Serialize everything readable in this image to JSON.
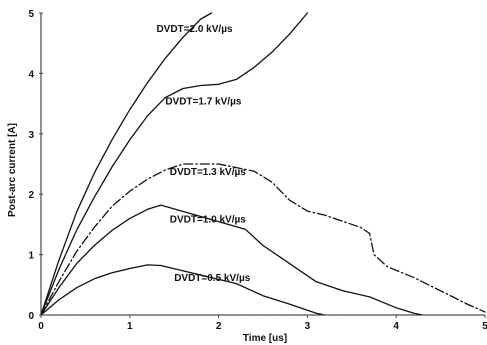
{
  "chart_data": {
    "type": "line",
    "title": "",
    "xlabel": "Time [us]",
    "ylabel": "Post-arc current [A]",
    "xlim": [
      0,
      5
    ],
    "ylim": [
      0,
      5
    ],
    "x_ticks": [
      "0",
      "1",
      "2",
      "3",
      "4",
      "5"
    ],
    "y_ticks": [
      "0",
      "1",
      "2",
      "3",
      "4",
      "5"
    ],
    "grid": false,
    "annotations": [
      {
        "text": "DVDT=2.0 kV/µs",
        "x": 1.3,
        "y": 4.75
      },
      {
        "text": "DVDT=1.7 kV/µs",
        "x": 1.4,
        "y": 3.55
      },
      {
        "text": "DVDT=1.3 kV/µs",
        "x": 1.45,
        "y": 2.38
      },
      {
        "text": "DVDT=1.0 kV/µs",
        "x": 1.45,
        "y": 1.6
      },
      {
        "text": "DVDT=0.5 kV/µs",
        "x": 1.5,
        "y": 0.63
      }
    ],
    "series": [
      {
        "style": "solid",
        "x": [
          0,
          0.2,
          0.4,
          0.6,
          0.8,
          1.0,
          1.2,
          1.4,
          1.6,
          1.8,
          1.92
        ],
        "y": [
          0,
          0.9,
          1.7,
          2.35,
          2.9,
          3.4,
          3.85,
          4.25,
          4.6,
          4.9,
          5.0
        ]
      },
      {
        "style": "solid",
        "x": [
          0,
          0.2,
          0.4,
          0.6,
          0.8,
          1.0,
          1.2,
          1.4,
          1.6,
          1.8,
          2.0,
          2.2,
          2.4,
          2.6,
          2.8,
          3.0
        ],
        "y": [
          0,
          0.75,
          1.4,
          1.95,
          2.45,
          2.9,
          3.3,
          3.6,
          3.75,
          3.8,
          3.82,
          3.9,
          4.1,
          4.35,
          4.65,
          5.0
        ]
      },
      {
        "style": "dash-dot",
        "x": [
          0,
          0.2,
          0.4,
          0.6,
          0.8,
          1.0,
          1.2,
          1.4,
          1.6,
          2.0,
          2.4,
          2.6,
          2.8,
          3.0,
          3.2,
          3.4,
          3.6,
          3.7,
          3.75,
          3.9,
          4.2,
          4.5,
          4.8,
          5.0
        ],
        "y": [
          0,
          0.55,
          1.05,
          1.45,
          1.8,
          2.05,
          2.25,
          2.4,
          2.5,
          2.5,
          2.38,
          2.2,
          1.9,
          1.72,
          1.65,
          1.55,
          1.45,
          1.35,
          1.0,
          0.8,
          0.62,
          0.4,
          0.18,
          0.05
        ]
      },
      {
        "style": "solid",
        "x": [
          0,
          0.2,
          0.4,
          0.6,
          0.8,
          1.0,
          1.2,
          1.35,
          2.3,
          2.5,
          2.7,
          2.9,
          3.1,
          3.4,
          3.7,
          4.0,
          4.2,
          4.3
        ],
        "y": [
          0,
          0.45,
          0.85,
          1.15,
          1.4,
          1.6,
          1.75,
          1.82,
          1.42,
          1.15,
          0.95,
          0.75,
          0.55,
          0.4,
          0.3,
          0.12,
          0.03,
          0
        ]
      },
      {
        "style": "solid",
        "x": [
          0,
          0.2,
          0.4,
          0.6,
          0.8,
          1.0,
          1.2,
          1.35,
          2.2,
          2.5,
          2.8,
          3.0,
          3.1,
          3.2
        ],
        "y": [
          0,
          0.25,
          0.45,
          0.6,
          0.7,
          0.77,
          0.83,
          0.82,
          0.52,
          0.32,
          0.18,
          0.08,
          0.03,
          0
        ]
      },
      {
        "style": "zero-dashdot",
        "x": [
          0,
          5
        ],
        "y": [
          0,
          0
        ]
      }
    ]
  }
}
